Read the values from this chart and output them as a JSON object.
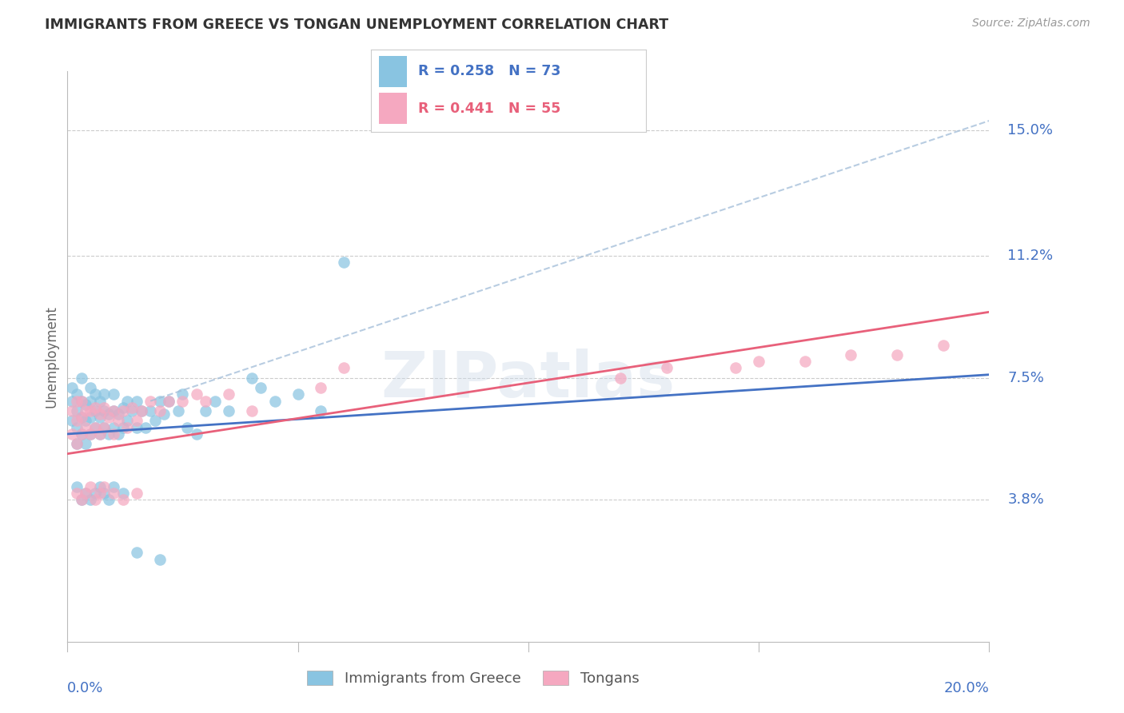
{
  "title": "IMMIGRANTS FROM GREECE VS TONGAN UNEMPLOYMENT CORRELATION CHART",
  "source": "Source: ZipAtlas.com",
  "ylabel": "Unemployment",
  "ytick_labels": [
    "15.0%",
    "11.2%",
    "7.5%",
    "3.8%"
  ],
  "ytick_values": [
    0.15,
    0.112,
    0.075,
    0.038
  ],
  "xmin": 0.0,
  "xmax": 0.2,
  "ymin": -0.005,
  "ymax": 0.168,
  "legend_r1": "R = 0.258",
  "legend_n1": "N = 73",
  "legend_r2": "R = 0.441",
  "legend_n2": "N = 55",
  "legend_label1": "Immigrants from Greece",
  "legend_label2": "Tongans",
  "color_blue": "#89c4e1",
  "color_pink": "#f5a8c0",
  "color_blue_line": "#4472c4",
  "color_pink_line": "#e8607a",
  "color_blue_dash": "#a0bcd8",
  "color_axis_text": "#4472c4",
  "watermark_color": "#ccd9e8",
  "greece_x": [
    0.001,
    0.001,
    0.001,
    0.002,
    0.002,
    0.002,
    0.002,
    0.003,
    0.003,
    0.003,
    0.003,
    0.004,
    0.004,
    0.004,
    0.005,
    0.005,
    0.005,
    0.005,
    0.006,
    0.006,
    0.006,
    0.007,
    0.007,
    0.007,
    0.008,
    0.008,
    0.008,
    0.009,
    0.009,
    0.01,
    0.01,
    0.01,
    0.011,
    0.011,
    0.012,
    0.012,
    0.013,
    0.013,
    0.014,
    0.015,
    0.015,
    0.016,
    0.017,
    0.018,
    0.019,
    0.02,
    0.021,
    0.022,
    0.024,
    0.025,
    0.026,
    0.028,
    0.03,
    0.032,
    0.035,
    0.04,
    0.042,
    0.045,
    0.05,
    0.055,
    0.002,
    0.003,
    0.004,
    0.005,
    0.006,
    0.007,
    0.008,
    0.009,
    0.01,
    0.012,
    0.015,
    0.02,
    0.06
  ],
  "greece_y": [
    0.062,
    0.068,
    0.072,
    0.055,
    0.06,
    0.065,
    0.07,
    0.058,
    0.063,
    0.068,
    0.075,
    0.055,
    0.062,
    0.067,
    0.058,
    0.063,
    0.068,
    0.072,
    0.06,
    0.065,
    0.07,
    0.058,
    0.063,
    0.068,
    0.06,
    0.065,
    0.07,
    0.058,
    0.064,
    0.06,
    0.065,
    0.07,
    0.058,
    0.064,
    0.06,
    0.066,
    0.062,
    0.068,
    0.065,
    0.06,
    0.068,
    0.065,
    0.06,
    0.065,
    0.062,
    0.068,
    0.064,
    0.068,
    0.065,
    0.07,
    0.06,
    0.058,
    0.065,
    0.068,
    0.065,
    0.075,
    0.072,
    0.068,
    0.07,
    0.065,
    0.042,
    0.038,
    0.04,
    0.038,
    0.04,
    0.042,
    0.04,
    0.038,
    0.042,
    0.04,
    0.022,
    0.02,
    0.11
  ],
  "tongan_x": [
    0.001,
    0.001,
    0.002,
    0.002,
    0.002,
    0.003,
    0.003,
    0.003,
    0.004,
    0.004,
    0.005,
    0.005,
    0.006,
    0.006,
    0.007,
    0.007,
    0.008,
    0.008,
    0.009,
    0.01,
    0.01,
    0.011,
    0.012,
    0.013,
    0.014,
    0.015,
    0.016,
    0.018,
    0.02,
    0.022,
    0.025,
    0.028,
    0.03,
    0.035,
    0.04,
    0.002,
    0.003,
    0.004,
    0.005,
    0.006,
    0.007,
    0.008,
    0.01,
    0.012,
    0.015,
    0.055,
    0.06,
    0.12,
    0.13,
    0.145,
    0.15,
    0.16,
    0.17,
    0.18,
    0.19
  ],
  "tongan_y": [
    0.058,
    0.065,
    0.055,
    0.062,
    0.068,
    0.058,
    0.063,
    0.068,
    0.06,
    0.065,
    0.058,
    0.065,
    0.06,
    0.066,
    0.058,
    0.064,
    0.06,
    0.066,
    0.063,
    0.058,
    0.065,
    0.062,
    0.065,
    0.06,
    0.066,
    0.062,
    0.065,
    0.068,
    0.065,
    0.068,
    0.068,
    0.07,
    0.068,
    0.07,
    0.065,
    0.04,
    0.038,
    0.04,
    0.042,
    0.038,
    0.04,
    0.042,
    0.04,
    0.038,
    0.04,
    0.072,
    0.078,
    0.075,
    0.078,
    0.078,
    0.08,
    0.08,
    0.082,
    0.082,
    0.085
  ],
  "greece_line_x": [
    0.0,
    0.2
  ],
  "greece_line_y": [
    0.058,
    0.076
  ],
  "tongan_line_x": [
    0.0,
    0.2
  ],
  "tongan_line_y": [
    0.052,
    0.095
  ],
  "dash_line_x": [
    0.018,
    0.2
  ],
  "dash_line_y": [
    0.068,
    0.153
  ]
}
